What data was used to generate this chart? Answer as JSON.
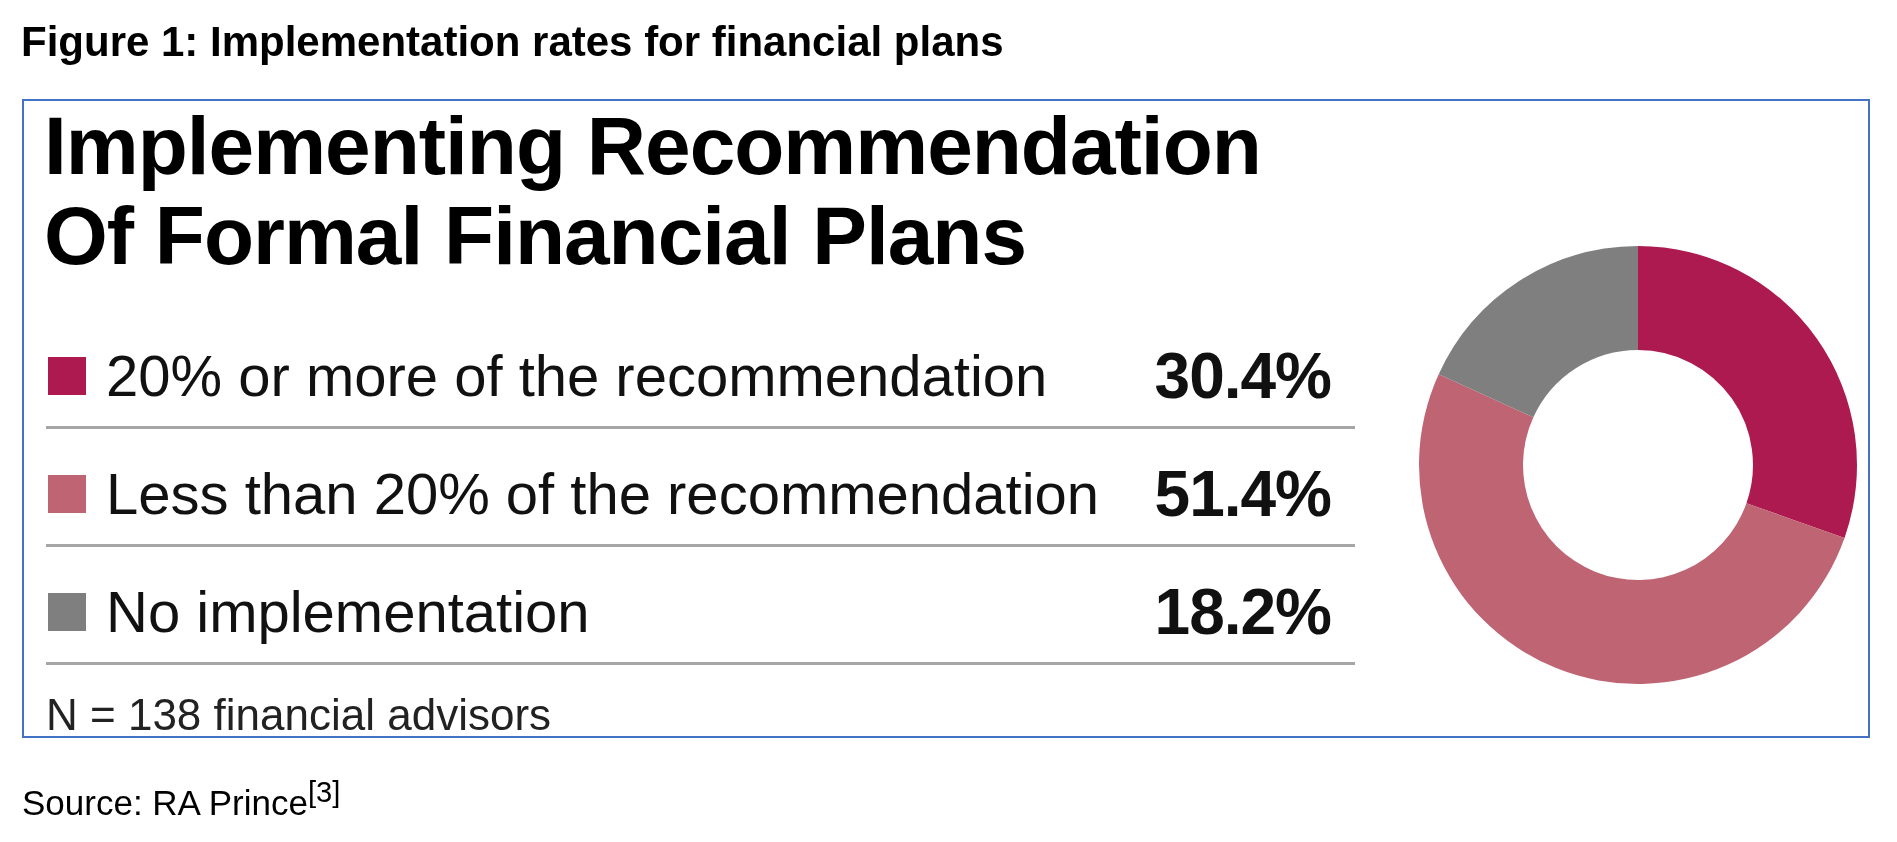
{
  "chart_data": {
    "type": "donut",
    "title": "Figure 1: Implementation rates for financial plans",
    "subtitle": "Implementing Recommendation Of Formal Financial Plans",
    "categories": [
      "20% or more of the recommendation",
      "Less than 20% of the recommendation",
      "No implementation"
    ],
    "values": [
      30.4,
      51.4,
      18.2
    ],
    "colors": [
      "#ad1a50",
      "#bf6472",
      "#7f7f7f"
    ],
    "value_labels": [
      "30.4%",
      "51.4%",
      "18.2%"
    ],
    "legend": "left",
    "annotations": [
      "N = 138 financial advisors",
      "Source: RA Prince$^{[3]}$"
    ]
  }
}
